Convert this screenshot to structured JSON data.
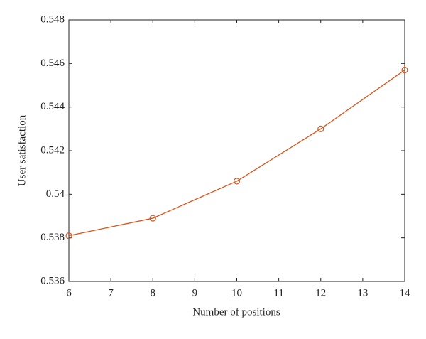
{
  "chart_data": {
    "type": "line",
    "xlabel": "Number of positions",
    "ylabel": "User satisfaction",
    "x": [
      6,
      8,
      10,
      12,
      14
    ],
    "series": [
      {
        "name": "User satisfaction",
        "color": "#d95319",
        "values": [
          0.5381,
          0.5389,
          0.5406,
          0.543,
          0.5457
        ]
      }
    ],
    "xlim": [
      6,
      14
    ],
    "xticks": [
      6,
      7,
      8,
      9,
      10,
      11,
      12,
      13,
      14
    ],
    "ylim": [
      0.536,
      0.548
    ],
    "yticks": [
      0.536,
      0.538,
      0.54,
      0.542,
      0.544,
      0.546,
      0.548
    ],
    "marker": "circle",
    "grid": false
  }
}
